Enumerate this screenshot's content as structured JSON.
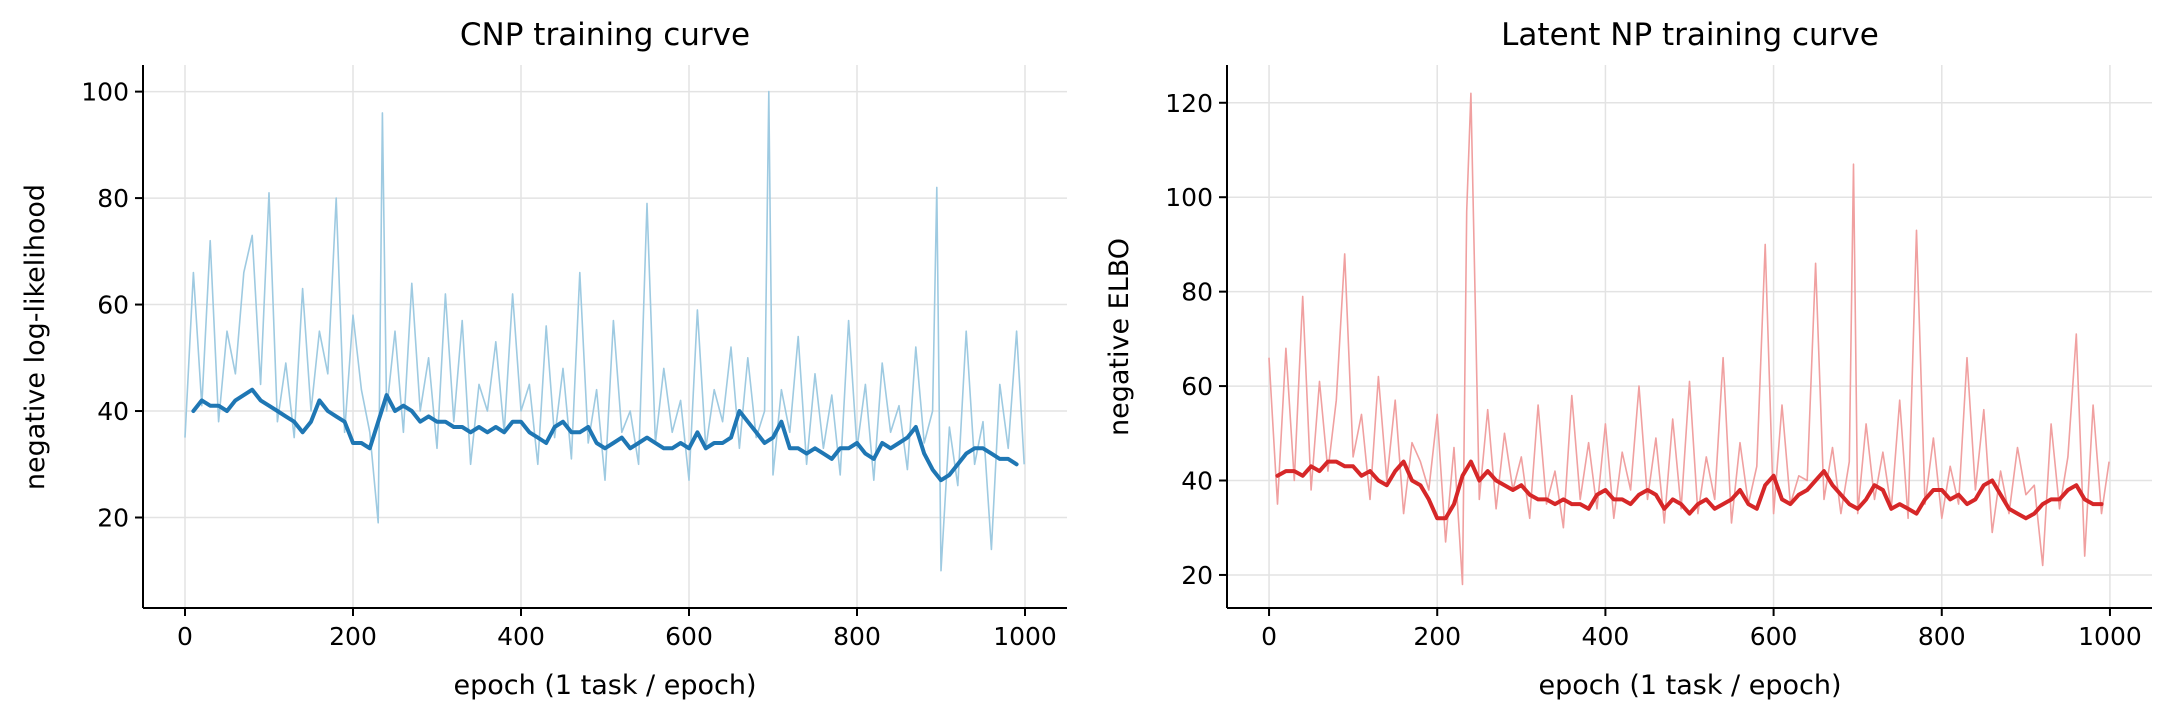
{
  "chart_data": [
    {
      "type": "line",
      "title": "CNP training curve",
      "xlabel": "epoch (1 task / epoch)",
      "ylabel": "negative log-likelihood",
      "xlim": [
        -50,
        1050
      ],
      "ylim": [
        3,
        105
      ],
      "xticks": [
        0,
        200,
        400,
        600,
        800,
        1000
      ],
      "yticks": [
        20,
        40,
        60,
        80,
        100
      ],
      "grid": true,
      "raw_color": "#9ecae1",
      "smooth_color": "#1f77b4",
      "series": [
        {
          "role": "raw",
          "x": [
            0,
            10,
            20,
            30,
            40,
            50,
            60,
            70,
            80,
            90,
            100,
            110,
            120,
            130,
            140,
            150,
            160,
            170,
            180,
            190,
            200,
            210,
            220,
            230,
            235,
            240,
            250,
            260,
            270,
            280,
            290,
            300,
            310,
            320,
            330,
            340,
            350,
            360,
            370,
            380,
            390,
            400,
            410,
            420,
            430,
            440,
            450,
            460,
            470,
            480,
            490,
            500,
            510,
            520,
            530,
            540,
            550,
            560,
            570,
            580,
            590,
            600,
            610,
            620,
            630,
            640,
            650,
            660,
            670,
            680,
            690,
            695,
            700,
            710,
            720,
            730,
            740,
            750,
            760,
            770,
            780,
            790,
            800,
            810,
            820,
            830,
            840,
            850,
            860,
            870,
            880,
            890,
            895,
            900,
            910,
            920,
            930,
            940,
            950,
            960,
            970,
            980,
            990,
            999
          ],
          "y": [
            35,
            66,
            41,
            72,
            38,
            55,
            47,
            66,
            73,
            45,
            81,
            38,
            49,
            35,
            63,
            40,
            55,
            47,
            80,
            36,
            58,
            44,
            36,
            19,
            96,
            40,
            55,
            36,
            64,
            40,
            50,
            33,
            62,
            38,
            57,
            30,
            45,
            40,
            53,
            36,
            62,
            40,
            45,
            30,
            56,
            35,
            48,
            31,
            66,
            34,
            44,
            27,
            57,
            36,
            40,
            30,
            79,
            34,
            48,
            36,
            42,
            27,
            59,
            33,
            44,
            38,
            52,
            33,
            50,
            35,
            40,
            100,
            28,
            44,
            36,
            54,
            30,
            47,
            33,
            43,
            28,
            57,
            33,
            45,
            27,
            49,
            36,
            41,
            29,
            52,
            34,
            40,
            82,
            10,
            37,
            26,
            55,
            30,
            38,
            14,
            45,
            33,
            55,
            30
          ]
        },
        {
          "role": "smoothed",
          "x": [
            10,
            20,
            30,
            40,
            50,
            60,
            70,
            80,
            90,
            100,
            110,
            120,
            130,
            140,
            150,
            160,
            170,
            180,
            190,
            200,
            210,
            220,
            230,
            240,
            250,
            260,
            270,
            280,
            290,
            300,
            310,
            320,
            330,
            340,
            350,
            360,
            370,
            380,
            390,
            400,
            410,
            420,
            430,
            440,
            450,
            460,
            470,
            480,
            490,
            500,
            510,
            520,
            530,
            540,
            550,
            560,
            570,
            580,
            590,
            600,
            610,
            620,
            630,
            640,
            650,
            660,
            670,
            680,
            690,
            700,
            710,
            720,
            730,
            740,
            750,
            760,
            770,
            780,
            790,
            800,
            810,
            820,
            830,
            840,
            850,
            860,
            870,
            880,
            890,
            900,
            910,
            920,
            930,
            940,
            950,
            960,
            970,
            980,
            990
          ],
          "y": [
            40,
            42,
            41,
            41,
            40,
            42,
            43,
            44,
            42,
            41,
            40,
            39,
            38,
            36,
            38,
            42,
            40,
            39,
            38,
            34,
            34,
            33,
            38,
            43,
            40,
            41,
            40,
            38,
            39,
            38,
            38,
            37,
            37,
            36,
            37,
            36,
            37,
            36,
            38,
            38,
            36,
            35,
            34,
            37,
            38,
            36,
            36,
            37,
            34,
            33,
            34,
            35,
            33,
            34,
            35,
            34,
            33,
            33,
            34,
            33,
            36,
            33,
            34,
            34,
            35,
            40,
            38,
            36,
            34,
            35,
            38,
            33,
            33,
            32,
            33,
            32,
            31,
            33,
            33,
            34,
            32,
            31,
            34,
            33,
            34,
            35,
            37,
            32,
            29,
            27,
            28,
            30,
            32,
            33,
            33,
            32,
            31,
            31,
            30
          ]
        }
      ]
    },
    {
      "type": "line",
      "title": "Latent NP training curve",
      "xlabel": "epoch (1 task / epoch)",
      "ylabel": "negative ELBO",
      "xlim": [
        -50,
        1050
      ],
      "ylim": [
        13,
        128
      ],
      "xticks": [
        0,
        200,
        400,
        600,
        800,
        1000
      ],
      "yticks": [
        20,
        40,
        60,
        80,
        100,
        120
      ],
      "grid": true,
      "raw_color": "#f0a0a0",
      "smooth_color": "#d62728",
      "series": [
        {
          "role": "raw",
          "x": [
            0,
            10,
            20,
            30,
            40,
            50,
            60,
            70,
            80,
            90,
            100,
            110,
            120,
            130,
            140,
            150,
            160,
            170,
            180,
            190,
            200,
            210,
            220,
            230,
            235,
            240,
            250,
            260,
            270,
            280,
            290,
            300,
            310,
            320,
            330,
            340,
            350,
            360,
            370,
            380,
            390,
            400,
            410,
            420,
            430,
            440,
            450,
            460,
            470,
            480,
            490,
            500,
            510,
            520,
            530,
            540,
            550,
            560,
            570,
            580,
            590,
            600,
            610,
            620,
            630,
            640,
            650,
            660,
            670,
            680,
            690,
            695,
            700,
            710,
            720,
            730,
            740,
            750,
            760,
            770,
            780,
            790,
            800,
            810,
            820,
            830,
            840,
            850,
            860,
            870,
            880,
            890,
            900,
            910,
            920,
            930,
            940,
            950,
            960,
            970,
            980,
            990,
            999
          ],
          "y": [
            66,
            35,
            68,
            40,
            79,
            38,
            61,
            42,
            57,
            88,
            45,
            54,
            36,
            62,
            40,
            57,
            33,
            48,
            44,
            38,
            54,
            27,
            47,
            18,
            97,
            122,
            36,
            55,
            34,
            50,
            38,
            45,
            32,
            56,
            35,
            42,
            30,
            58,
            36,
            48,
            34,
            52,
            32,
            46,
            38,
            60,
            36,
            49,
            31,
            53,
            34,
            61,
            33,
            45,
            36,
            66,
            31,
            48,
            35,
            43,
            90,
            33,
            56,
            35,
            41,
            40,
            86,
            36,
            47,
            33,
            44,
            107,
            33,
            52,
            36,
            46,
            34,
            57,
            32,
            93,
            35,
            49,
            32,
            43,
            35,
            66,
            38,
            55,
            29,
            42,
            33,
            47,
            37,
            39,
            22,
            52,
            34,
            45,
            71,
            24,
            56,
            33,
            44
          ]
        },
        {
          "role": "smoothed",
          "x": [
            10,
            20,
            30,
            40,
            50,
            60,
            70,
            80,
            90,
            100,
            110,
            120,
            130,
            140,
            150,
            160,
            170,
            180,
            190,
            200,
            210,
            220,
            230,
            240,
            250,
            260,
            270,
            280,
            290,
            300,
            310,
            320,
            330,
            340,
            350,
            360,
            370,
            380,
            390,
            400,
            410,
            420,
            430,
            440,
            450,
            460,
            470,
            480,
            490,
            500,
            510,
            520,
            530,
            540,
            550,
            560,
            570,
            580,
            590,
            600,
            610,
            620,
            630,
            640,
            650,
            660,
            670,
            680,
            690,
            700,
            710,
            720,
            730,
            740,
            750,
            760,
            770,
            780,
            790,
            800,
            810,
            820,
            830,
            840,
            850,
            860,
            870,
            880,
            890,
            900,
            910,
            920,
            930,
            940,
            950,
            960,
            970,
            980,
            990
          ],
          "y": [
            41,
            42,
            42,
            41,
            43,
            42,
            44,
            44,
            43,
            43,
            41,
            42,
            40,
            39,
            42,
            44,
            40,
            39,
            36,
            32,
            32,
            35,
            41,
            44,
            40,
            42,
            40,
            39,
            38,
            39,
            37,
            36,
            36,
            35,
            36,
            35,
            35,
            34,
            37,
            38,
            36,
            36,
            35,
            37,
            38,
            37,
            34,
            36,
            35,
            33,
            35,
            36,
            34,
            35,
            36,
            38,
            35,
            34,
            39,
            41,
            36,
            35,
            37,
            38,
            40,
            42,
            39,
            37,
            35,
            34,
            36,
            39,
            38,
            34,
            35,
            34,
            33,
            36,
            38,
            38,
            36,
            37,
            35,
            36,
            39,
            40,
            37,
            34,
            33,
            32,
            33,
            35,
            36,
            36,
            38,
            39,
            36,
            35,
            35
          ]
        }
      ]
    }
  ]
}
